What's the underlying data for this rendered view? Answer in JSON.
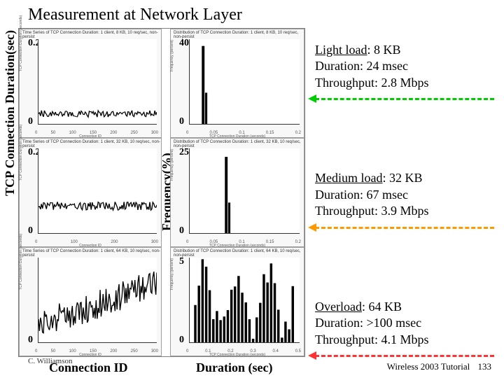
{
  "title": "Measurement at Network Layer",
  "y_axis_label": "TCP Connection Duration(sec)",
  "mid_y_label": "Frequency(%)",
  "x_axis_left": "Connection ID",
  "x_axis_right": "Duration (sec)",
  "author": "C. Williamson",
  "footer_text": "Wireless 2003 Tutorial",
  "page_number": "133",
  "rows": [
    {
      "kb_left": "8 KB",
      "kb_right": "8 KB",
      "ymax_left": "0.2",
      "ymax_right": "40",
      "left_title": "Time Series of TCP Connection Duration: 1 client, 8 KB, 10 req/sec, non-persist",
      "right_title": "Distribution of TCP Connection Duration: 1 client, 8 KB, 10 req/sec, non-persist",
      "left_xticks": [
        "0",
        "50",
        "100",
        "150",
        "200",
        "250",
        "300"
      ],
      "right_xticks": [
        "0",
        "0.05",
        "0.1",
        "0.15",
        "0.2"
      ],
      "left_small_x": "Connection ID",
      "right_small_x": "TCP Connection Duration (seconds)",
      "left_small_y": "TCP Connection Duration (seconds)",
      "right_small_y": "Frequency (percent)",
      "left_pattern": "flat-low",
      "right_pattern": "spike",
      "spike_pos": 0.12,
      "spike_height": 0.92,
      "flat_level": 0.12,
      "divider_color": "green"
    },
    {
      "kb_left": "32 KB",
      "kb_right": "32 KB",
      "ymax_left": "0.2",
      "ymax_right": "25",
      "left_title": "Time Series of TCP Connection Duration: 1 client, 32 KB, 10 req/sec, non-persist",
      "right_title": "Distribution of TCP Connection Duration: 1 client, 32 KB, 10 req/sec, non-persist",
      "left_xticks": [
        "0",
        "100",
        "200",
        "300"
      ],
      "right_xticks": [
        "0",
        "0.05",
        "0.1",
        "0.15",
        "0.2"
      ],
      "left_small_x": "Connection ID",
      "right_small_x": "TCP Connection Duration (seconds)",
      "left_small_y": "TCP Connection Duration (seconds)",
      "right_small_y": "Frequency (percent)",
      "left_pattern": "flat-mid",
      "right_pattern": "spike",
      "spike_pos": 0.33,
      "spike_height": 0.9,
      "flat_level": 0.32,
      "divider_color": "orange"
    },
    {
      "kb_left": "64 KB",
      "kb_right": "64 KB",
      "ymax_left": "",
      "ymax_right": "5",
      "left_title": "Time Series of TCP Connection Duration: 1 client, 64 KB, 10 req/sec, non-persist",
      "right_title": "Distribution of TCP Connection Duration: 1 client, 64 KB, 10 req/sec, non-persist",
      "left_xticks": [
        "0",
        "50",
        "100",
        "150",
        "200",
        "250",
        "300"
      ],
      "right_xticks": [
        "0",
        "0.1",
        "0.2",
        "0.3",
        "0.4",
        "0.5"
      ],
      "left_small_x": "Connection ID",
      "right_small_x": "TCP Connection Duration (seconds)",
      "left_small_y": "TCP Connection Duration (seconds)",
      "right_small_y": "Frequency (percent)",
      "left_pattern": "increasing-noisy",
      "right_pattern": "multi-bar",
      "flat_level": 0.5,
      "divider_color": "red"
    }
  ],
  "loads": [
    {
      "title": "Light load",
      "size": "8 KB",
      "duration": "Duration: 24 msec",
      "throughput": "Throughput: 2.8 Mbps"
    },
    {
      "title": "Medium load",
      "size": "32 KB",
      "duration": "Duration: 67 msec",
      "throughput": "Throughput: 3.9 Mbps"
    },
    {
      "title": "Overload",
      "size": "64 KB",
      "duration": "Duration: >100 msec",
      "throughput": "Throughput: 4.1 Mbps"
    }
  ],
  "chart_colors": {
    "line": "#000000",
    "plot_bg": "#ffffff",
    "cell_bg": "#f8f8f8",
    "border": "#808080"
  }
}
